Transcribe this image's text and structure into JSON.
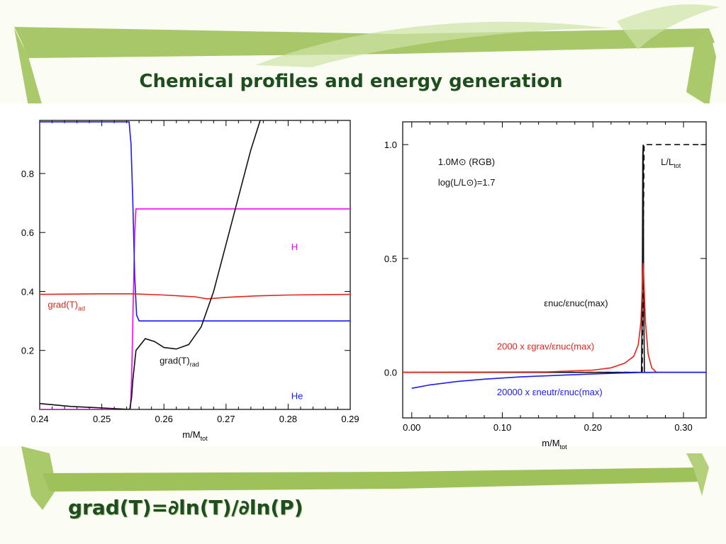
{
  "slide": {
    "title": "Chemical profiles and energy generation",
    "formula": "grad(T)=∂ln(T)/∂ln(P)",
    "colors": {
      "title": "#1e4d1e",
      "frame_green": "#9fc15a",
      "background": "#fbfdf4"
    }
  },
  "chart_data": [
    {
      "type": "line",
      "xlabel": "m/M",
      "xlabel_sub": "tot",
      "ylabel": "",
      "xlim": [
        0.24,
        0.29
      ],
      "ylim": [
        0.0,
        0.98
      ],
      "xticks": [
        "0.24",
        "0.25",
        "0.26",
        "0.27",
        "0.28",
        "0.29"
      ],
      "xtick_values": [
        0.24,
        0.25,
        0.26,
        0.27,
        0.28,
        0.29
      ],
      "yticks": [
        "0.2",
        "0.4",
        "0.6",
        "0.8"
      ],
      "ytick_values": [
        0.2,
        0.4,
        0.6,
        0.8
      ],
      "grid": false,
      "series": [
        {
          "name": "H",
          "color": "#ff00ff",
          "x": [
            0.24,
            0.2546,
            0.2548,
            0.255,
            0.2553,
            0.2555,
            0.256,
            0.29
          ],
          "y": [
            0.0,
            0.0,
            0.1,
            0.3,
            0.6,
            0.68,
            0.68,
            0.68
          ]
        },
        {
          "name": "He",
          "color": "#1a1aff",
          "x": [
            0.24,
            0.2544,
            0.2547,
            0.255,
            0.2553,
            0.2556,
            0.256,
            0.29
          ],
          "y": [
            0.975,
            0.975,
            0.9,
            0.7,
            0.45,
            0.32,
            0.3,
            0.3
          ]
        },
        {
          "name": "grad(T)",
          "subscript": "ad",
          "color": "#e8221b",
          "x": [
            0.24,
            0.25,
            0.255,
            0.26,
            0.265,
            0.267,
            0.27,
            0.275,
            0.28,
            0.29
          ],
          "y": [
            0.39,
            0.392,
            0.392,
            0.388,
            0.382,
            0.375,
            0.38,
            0.385,
            0.388,
            0.39
          ]
        },
        {
          "name": "grad(T)",
          "subscript": "rad",
          "color": "#111111",
          "x": [
            0.24,
            0.245,
            0.25,
            0.2545,
            0.2548,
            0.255,
            0.2555,
            0.257,
            0.2585,
            0.26,
            0.262,
            0.264,
            0.266,
            0.268,
            0.27,
            0.272,
            0.274,
            0.2755
          ],
          "y": [
            0.02,
            0.01,
            0.005,
            0.0,
            0.04,
            0.1,
            0.2,
            0.24,
            0.23,
            0.21,
            0.205,
            0.22,
            0.28,
            0.4,
            0.56,
            0.72,
            0.88,
            0.98
          ]
        }
      ],
      "annotations": [
        {
          "text": "H",
          "color": "#ff00ff",
          "x": 0.2805,
          "y": 0.54
        },
        {
          "text": "He",
          "color": "#1a1aff",
          "x": 0.2805,
          "y": 0.035
        },
        {
          "text": "grad(T)",
          "sub": "ad",
          "color": "#e8221b",
          "x": 0.2413,
          "y": 0.345
        },
        {
          "text": "grad(T)",
          "sub": "rad",
          "color": "#111111",
          "x": 0.2593,
          "y": 0.155
        }
      ]
    },
    {
      "type": "line",
      "xlabel": "m/M",
      "xlabel_sub": "tot",
      "ylabel": "",
      "xlim": [
        -0.01,
        0.325
      ],
      "ylim": [
        -0.2,
        1.1
      ],
      "xticks": [
        "0.00",
        "0.10",
        "0.20",
        "0.30"
      ],
      "xtick_values": [
        0.0,
        0.1,
        0.2,
        0.3
      ],
      "yticks": [
        "0.0",
        "0.5",
        "1.0"
      ],
      "ytick_values": [
        0.0,
        0.5,
        1.0
      ],
      "grid": false,
      "series": [
        {
          "name": "L/L",
          "subscript": "tot",
          "color": "#111111",
          "dash": "8,5",
          "x": [
            -0.01,
            0.2545,
            0.2555,
            0.2565,
            0.325
          ],
          "y": [
            0.0,
            0.0,
            0.5,
            1.0,
            1.0
          ]
        },
        {
          "name": "εnuc/εnuc(max)",
          "color": "#111111",
          "x": [
            -0.01,
            0.2535,
            0.2545,
            0.255,
            0.2555,
            0.256,
            0.2568,
            0.325
          ],
          "y": [
            0.0,
            0.0,
            0.3,
            0.95,
            1.0,
            0.4,
            0.0,
            0.0
          ]
        },
        {
          "name": "2000 x εgrav/εnuc(max)",
          "color": "#e8221b",
          "x": [
            -0.01,
            0.15,
            0.2,
            0.22,
            0.235,
            0.245,
            0.25,
            0.253,
            0.2555,
            0.258,
            0.261,
            0.265,
            0.27,
            0.325
          ],
          "y": [
            0.0,
            0.002,
            0.01,
            0.02,
            0.04,
            0.07,
            0.12,
            0.22,
            0.48,
            0.22,
            0.08,
            0.02,
            0.0,
            0.0
          ]
        },
        {
          "name": "20000 x εneutr/εnuc(max)",
          "color": "#1a1aff",
          "x": [
            0.0,
            0.02,
            0.05,
            0.08,
            0.12,
            0.16,
            0.2,
            0.23,
            0.25,
            0.27,
            0.325
          ],
          "y": [
            -0.07,
            -0.055,
            -0.04,
            -0.03,
            -0.02,
            -0.013,
            -0.007,
            -0.003,
            -0.001,
            0.0,
            0.0
          ]
        }
      ],
      "annotations": [
        {
          "text": "1.0M⊙ (RGB)",
          "color": "#111111",
          "x": 0.029,
          "y": 0.91
        },
        {
          "text": "log(L/L⊙)=1.7",
          "color": "#111111",
          "x": 0.029,
          "y": 0.82
        },
        {
          "text": "L/L",
          "sub": "tot",
          "color": "#111111",
          "x": 0.275,
          "y": 0.91
        },
        {
          "text": "εnuc/εnuc(max)",
          "color": "#111111",
          "x": 0.146,
          "y": 0.29
        },
        {
          "text": "2000 x εgrav/εnuc(max)",
          "color": "#e8221b",
          "x": 0.094,
          "y": 0.1
        },
        {
          "text": "20000 x εneutr/εnuc(max)",
          "color": "#1a1aff",
          "x": 0.094,
          "y": -0.1
        }
      ]
    }
  ]
}
